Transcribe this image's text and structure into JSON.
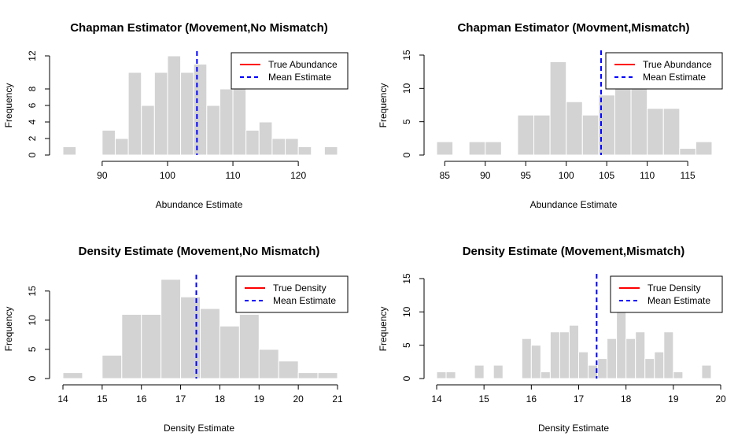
{
  "colors": {
    "bar_fill": "#d3d3d3",
    "bar_stroke": "#ffffff",
    "true_line": "#ff0000",
    "mean_line": "#0000ff",
    "axis": "#000000"
  },
  "chart_data": [
    {
      "type": "bar",
      "title": "Chapman Estimator (Movement,No Mismatch)",
      "xlabel": "Abundance Estimate",
      "ylabel": "Frequency",
      "xlim": [
        84,
        126
      ],
      "ylim": [
        0,
        12
      ],
      "x_axis_range": [
        90,
        120
      ],
      "xticks": [
        90,
        100,
        110,
        120
      ],
      "yticks": [
        0,
        2,
        4,
        6,
        8,
        12
      ],
      "bin_width": 2,
      "bins": [
        {
          "start": 84,
          "count": 1
        },
        {
          "start": 86,
          "count": 0
        },
        {
          "start": 88,
          "count": 0
        },
        {
          "start": 90,
          "count": 3
        },
        {
          "start": 92,
          "count": 2
        },
        {
          "start": 94,
          "count": 10
        },
        {
          "start": 96,
          "count": 6
        },
        {
          "start": 98,
          "count": 10
        },
        {
          "start": 100,
          "count": 12
        },
        {
          "start": 102,
          "count": 10
        },
        {
          "start": 104,
          "count": 11
        },
        {
          "start": 106,
          "count": 6
        },
        {
          "start": 108,
          "count": 8
        },
        {
          "start": 110,
          "count": 9
        },
        {
          "start": 112,
          "count": 3
        },
        {
          "start": 114,
          "count": 4
        },
        {
          "start": 116,
          "count": 2
        },
        {
          "start": 118,
          "count": 2
        },
        {
          "start": 120,
          "count": 1
        },
        {
          "start": 122,
          "count": 0
        },
        {
          "start": 124,
          "count": 1
        }
      ],
      "mean_estimate": 104.5,
      "legend": {
        "position": "top-right",
        "entries": [
          {
            "label": "True Abundance",
            "color": "#ff0000",
            "style": "solid"
          },
          {
            "label": "Mean Estimate",
            "color": "#0000ff",
            "style": "dashed"
          }
        ]
      }
    },
    {
      "type": "bar",
      "title": "Chapman Estimator (Movment,Mismatch)",
      "xlabel": "Abundance Estimate",
      "ylabel": "Frequency",
      "xlim": [
        84,
        118
      ],
      "ylim": [
        0,
        15
      ],
      "x_axis_range": [
        85,
        115
      ],
      "xticks": [
        85,
        90,
        95,
        100,
        105,
        110,
        115
      ],
      "yticks": [
        0,
        5,
        10,
        15
      ],
      "bin_width": 2,
      "bins": [
        {
          "start": 84,
          "count": 2
        },
        {
          "start": 86,
          "count": 0
        },
        {
          "start": 88,
          "count": 2
        },
        {
          "start": 90,
          "count": 2
        },
        {
          "start": 92,
          "count": 0
        },
        {
          "start": 94,
          "count": 6
        },
        {
          "start": 96,
          "count": 6
        },
        {
          "start": 98,
          "count": 14
        },
        {
          "start": 100,
          "count": 8
        },
        {
          "start": 102,
          "count": 6
        },
        {
          "start": 104,
          "count": 9
        },
        {
          "start": 106,
          "count": 15
        },
        {
          "start": 108,
          "count": 13
        },
        {
          "start": 110,
          "count": 7
        },
        {
          "start": 112,
          "count": 7
        },
        {
          "start": 114,
          "count": 1
        },
        {
          "start": 116,
          "count": 2
        }
      ],
      "mean_estimate": 104.3,
      "legend": {
        "position": "top-right",
        "entries": [
          {
            "label": "True Abundance",
            "color": "#ff0000",
            "style": "solid"
          },
          {
            "label": "Mean Estimate",
            "color": "#0000ff",
            "style": "dashed"
          }
        ]
      }
    },
    {
      "type": "bar",
      "title": "Density Estimate (Movement,No Mismatch)",
      "xlabel": "Density Estimate",
      "ylabel": "Frequency",
      "xlim": [
        14,
        21
      ],
      "ylim": [
        0,
        17
      ],
      "x_axis_range": [
        14,
        21
      ],
      "xticks": [
        14,
        15,
        16,
        17,
        18,
        19,
        20,
        21
      ],
      "yticks": [
        0,
        5,
        10,
        15
      ],
      "bin_width": 0.5,
      "bins": [
        {
          "start": 14.0,
          "count": 1
        },
        {
          "start": 14.5,
          "count": 0
        },
        {
          "start": 15.0,
          "count": 4
        },
        {
          "start": 15.5,
          "count": 11
        },
        {
          "start": 16.0,
          "count": 11
        },
        {
          "start": 16.5,
          "count": 17
        },
        {
          "start": 17.0,
          "count": 14
        },
        {
          "start": 17.5,
          "count": 12
        },
        {
          "start": 18.0,
          "count": 9
        },
        {
          "start": 18.5,
          "count": 11
        },
        {
          "start": 19.0,
          "count": 5
        },
        {
          "start": 19.5,
          "count": 3
        },
        {
          "start": 20.0,
          "count": 1
        },
        {
          "start": 20.5,
          "count": 1
        }
      ],
      "mean_estimate": 17.4,
      "legend": {
        "position": "top-right",
        "entries": [
          {
            "label": "True Density",
            "color": "#ff0000",
            "style": "solid"
          },
          {
            "label": "Mean Estimate",
            "color": "#0000ff",
            "style": "dashed"
          }
        ]
      }
    },
    {
      "type": "bar",
      "title": "Density Estimate (Movement,Mismatch)",
      "xlabel": "Density Estimate",
      "ylabel": "Frequency",
      "xlim": [
        14,
        20
      ],
      "ylim": [
        0,
        15
      ],
      "x_axis_range": [
        14,
        20
      ],
      "xticks": [
        14,
        15,
        16,
        17,
        18,
        19,
        20
      ],
      "yticks": [
        0,
        5,
        10,
        15
      ],
      "bin_width": 0.2,
      "bins": [
        {
          "start": 14.0,
          "count": 1
        },
        {
          "start": 14.2,
          "count": 1
        },
        {
          "start": 14.4,
          "count": 0
        },
        {
          "start": 14.6,
          "count": 0
        },
        {
          "start": 14.8,
          "count": 2
        },
        {
          "start": 15.0,
          "count": 0
        },
        {
          "start": 15.2,
          "count": 2
        },
        {
          "start": 15.4,
          "count": 0
        },
        {
          "start": 15.6,
          "count": 0
        },
        {
          "start": 15.8,
          "count": 6
        },
        {
          "start": 16.0,
          "count": 5
        },
        {
          "start": 16.2,
          "count": 1
        },
        {
          "start": 16.4,
          "count": 7
        },
        {
          "start": 16.6,
          "count": 7
        },
        {
          "start": 16.8,
          "count": 8
        },
        {
          "start": 17.0,
          "count": 4
        },
        {
          "start": 17.2,
          "count": 2
        },
        {
          "start": 17.4,
          "count": 3
        },
        {
          "start": 17.6,
          "count": 6
        },
        {
          "start": 17.8,
          "count": 15
        },
        {
          "start": 18.0,
          "count": 6
        },
        {
          "start": 18.2,
          "count": 7
        },
        {
          "start": 18.4,
          "count": 3
        },
        {
          "start": 18.6,
          "count": 4
        },
        {
          "start": 18.8,
          "count": 7
        },
        {
          "start": 19.0,
          "count": 1
        },
        {
          "start": 19.2,
          "count": 0
        },
        {
          "start": 19.4,
          "count": 0
        },
        {
          "start": 19.6,
          "count": 2
        }
      ],
      "mean_estimate": 17.38,
      "legend": {
        "position": "top-right",
        "entries": [
          {
            "label": "True Density",
            "color": "#ff0000",
            "style": "solid"
          },
          {
            "label": "Mean Estimate",
            "color": "#0000ff",
            "style": "dashed"
          }
        ]
      }
    }
  ]
}
